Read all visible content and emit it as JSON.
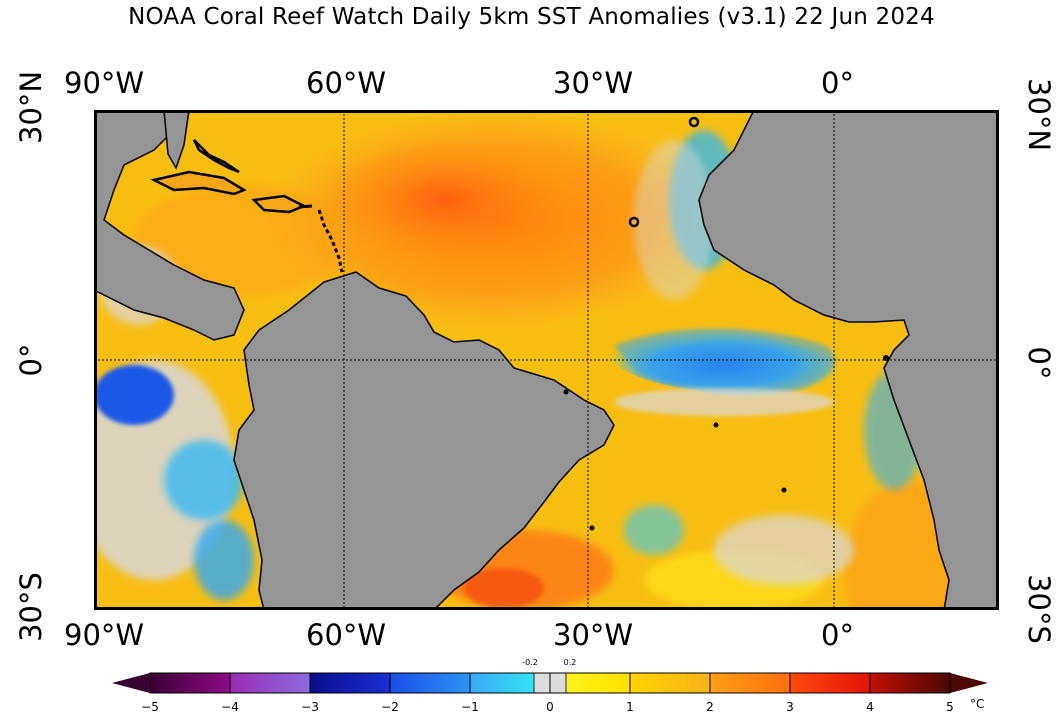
{
  "header": {
    "title": "NOAA Coral Reef Watch Daily 5km SST Anomalies  (v3.1)   22 Jun 2024"
  },
  "axes": {
    "lon_top": [
      "90°W",
      "60°W",
      "30°W",
      "0°"
    ],
    "lon_bottom": [
      "90°W",
      "60°W",
      "30°W",
      "0°"
    ],
    "lat_left": [
      "30°N",
      "0°",
      "30°S"
    ],
    "lat_right": [
      "30°N",
      "0°",
      "30°S"
    ]
  },
  "map": {
    "extent": {
      "lon": [
        -90,
        20
      ],
      "lat": [
        -30,
        30
      ]
    },
    "gridlines": {
      "lon": [
        -60,
        -30,
        0
      ],
      "lat": [
        0
      ]
    },
    "land_color": "#959595",
    "ocean_base_color": "#f7be12"
  },
  "legend": {
    "unit": "°C",
    "small_labels": [
      "-0.2",
      "0.2"
    ],
    "tick_labels": [
      "−5",
      "−4",
      "−3",
      "−2",
      "−1",
      "0",
      "1",
      "2",
      "3",
      "4",
      "5"
    ],
    "ramp": [
      {
        "from": -5,
        "to": -4,
        "colors": [
          "#3a0033",
          "#8d0a86"
        ]
      },
      {
        "from": -4,
        "to": -3,
        "colors": [
          "#9a2cb0",
          "#8a6de0"
        ]
      },
      {
        "from": -3,
        "to": -2,
        "colors": [
          "#0c0c8c",
          "#1a2fd4"
        ]
      },
      {
        "from": -2,
        "to": -1,
        "colors": [
          "#1a4ee6",
          "#2d94f5"
        ]
      },
      {
        "from": -1,
        "to": -0.2,
        "colors": [
          "#39a8f5",
          "#34e2f2"
        ]
      },
      {
        "from": -0.2,
        "to": 0.2,
        "colors": [
          "#dcdcdc",
          "#dcdcdc"
        ]
      },
      {
        "from": 0.2,
        "to": 1,
        "colors": [
          "#fff31e",
          "#ffe000"
        ]
      },
      {
        "from": 1,
        "to": 2,
        "colors": [
          "#ffd400",
          "#f5b318"
        ]
      },
      {
        "from": 2,
        "to": 3,
        "colors": [
          "#ff9f16",
          "#ff6e0e"
        ]
      },
      {
        "from": 3,
        "to": 4,
        "colors": [
          "#ff4a0a",
          "#e21309"
        ]
      },
      {
        "from": 4,
        "to": 5,
        "colors": [
          "#c21006",
          "#4a0800"
        ]
      }
    ]
  }
}
